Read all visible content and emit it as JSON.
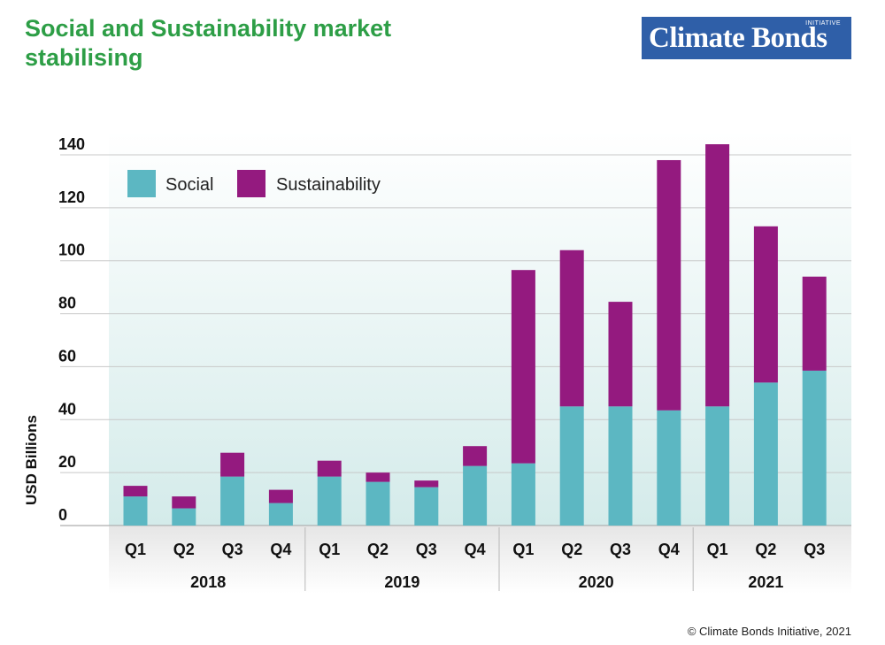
{
  "header": {
    "title": "Social and Sustainability market stabilising"
  },
  "logo": {
    "main": "Climate Bonds",
    "sub": "INITIATIVE",
    "color": "#2f5fa8"
  },
  "footer": {
    "credit": "© Climate Bonds Initiative, 2021"
  },
  "chart_data": {
    "type": "bar",
    "stacked": true,
    "title": "Social and Sustainability market stabilising",
    "xlabel": "",
    "ylabel": "USD Billions",
    "ylim": [
      0,
      140
    ],
    "yticks": [
      0,
      20,
      40,
      60,
      80,
      100,
      120,
      140
    ],
    "grid": true,
    "legend": "top-left",
    "categories": [
      "Q1",
      "Q2",
      "Q3",
      "Q4",
      "Q1",
      "Q2",
      "Q3",
      "Q4",
      "Q1",
      "Q2",
      "Q3",
      "Q4",
      "Q1",
      "Q2",
      "Q3"
    ],
    "groups": [
      {
        "label": "2018",
        "count": 4
      },
      {
        "label": "2019",
        "count": 4
      },
      {
        "label": "2020",
        "count": 4
      },
      {
        "label": "2021",
        "count": 3
      }
    ],
    "series": [
      {
        "name": "Social",
        "color": "#5cb7c2",
        "values": [
          11,
          6.5,
          18.5,
          8.5,
          18.5,
          16.5,
          14.5,
          22.5,
          23.5,
          45,
          45,
          43.5,
          45,
          54,
          58.5
        ]
      },
      {
        "name": "Sustainability",
        "color": "#941a7f",
        "values": [
          4,
          4.5,
          9,
          5,
          6,
          3.5,
          2.5,
          7.5,
          73,
          59,
          39.5,
          94.5,
          99,
          59,
          35.5
        ]
      }
    ],
    "totals": [
      15,
      11,
      27.5,
      13.5,
      24.5,
      20,
      17,
      30,
      96.5,
      104,
      84.5,
      138,
      144,
      113,
      94
    ]
  }
}
